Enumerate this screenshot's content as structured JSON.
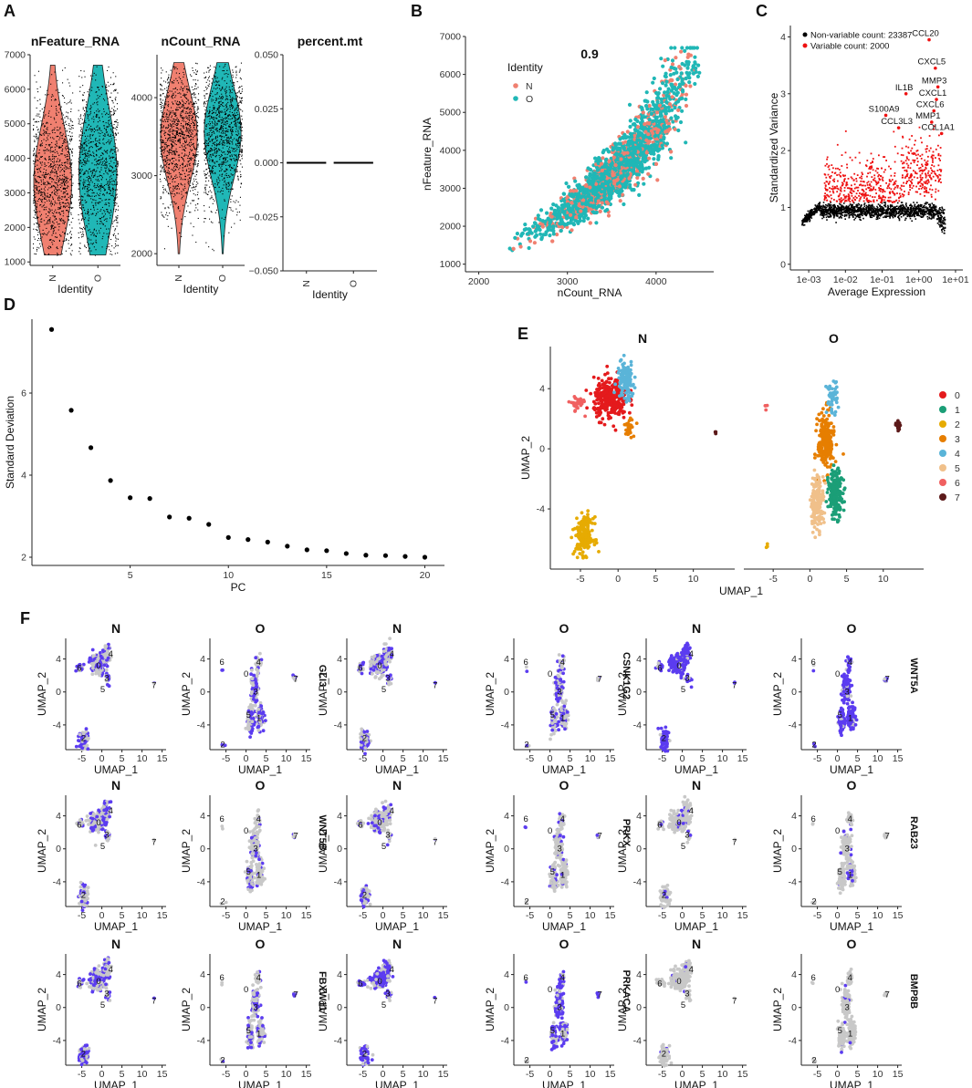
{
  "panel_letters": [
    "A",
    "B",
    "C",
    "D",
    "E",
    "F"
  ],
  "chart_data": [
    {
      "id": "A1",
      "type": "violin",
      "title": "nFeature_RNA",
      "categories": [
        "N",
        "O"
      ],
      "xlabel": "Identity",
      "ylabel": "",
      "ylim": [
        900,
        7000
      ],
      "yticks": [
        1000,
        2000,
        3000,
        4000,
        5000,
        6000,
        7000
      ],
      "series": [
        {
          "name": "N",
          "color": "#F08070",
          "summary": {
            "min": 1200,
            "q1": 2500,
            "median": 3300,
            "q3": 4300,
            "max": 6700
          }
        },
        {
          "name": "O",
          "color": "#20B7B6",
          "summary": {
            "min": 1200,
            "q1": 2700,
            "median": 3600,
            "q3": 4700,
            "max": 6700
          }
        }
      ]
    },
    {
      "id": "A2",
      "type": "violin",
      "title": "nCount_RNA",
      "categories": [
        "N",
        "O"
      ],
      "xlabel": "Identity",
      "ylabel": "",
      "ylim": [
        1850,
        4550
      ],
      "yticks": [
        2000,
        3000,
        4000
      ],
      "series": [
        {
          "name": "N",
          "color": "#F08070",
          "summary": {
            "min": 2000,
            "q1": 3150,
            "median": 3500,
            "q3": 3800,
            "max": 4450
          }
        },
        {
          "name": "O",
          "color": "#20B7B6",
          "summary": {
            "min": 2000,
            "q1": 3200,
            "median": 3550,
            "q3": 3850,
            "max": 4450
          }
        }
      ]
    },
    {
      "id": "A3",
      "type": "violin",
      "title": "percent.mt",
      "categories": [
        "N",
        "O"
      ],
      "xlabel": "Identity",
      "ylabel": "",
      "ylim": [
        -0.05,
        0.05
      ],
      "yticks": [
        -0.05,
        -0.025,
        0.0,
        0.025,
        0.05
      ],
      "ytick_labels": [
        "−0.050",
        "−0.025",
        "0.000",
        "0.025",
        "0.050"
      ],
      "series": [
        {
          "name": "N",
          "value": 0.0
        },
        {
          "name": "O",
          "value": 0.0
        }
      ]
    },
    {
      "id": "B",
      "type": "scatter",
      "title": "0.9",
      "xlabel": "nCount_RNA",
      "ylabel": "nFeature_RNA",
      "xlim": [
        1850,
        4650
      ],
      "ylim": [
        800,
        7000
      ],
      "xticks": [
        2000,
        3000,
        4000
      ],
      "yticks": [
        1000,
        2000,
        3000,
        4000,
        5000,
        6000,
        7000
      ],
      "legend": {
        "title": "Identity",
        "items": [
          {
            "name": "N",
            "color": "#F08070"
          },
          {
            "name": "O",
            "color": "#20B7B6"
          }
        ],
        "position": "top-left"
      },
      "series": [
        {
          "name": "N",
          "color": "#F08070",
          "trend": [
            [
              2000,
              1200
            ],
            [
              2500,
              1700
            ],
            [
              3000,
              2400
            ],
            [
              3500,
              3300
            ],
            [
              4000,
              4600
            ],
            [
              4400,
              6200
            ]
          ]
        },
        {
          "name": "O",
          "color": "#20B7B6",
          "trend": [
            [
              2000,
              1200
            ],
            [
              2500,
              1700
            ],
            [
              3000,
              2400
            ],
            [
              3500,
              3300
            ],
            [
              4000,
              4600
            ],
            [
              4400,
              6200
            ]
          ]
        }
      ]
    },
    {
      "id": "C",
      "type": "scatter",
      "title": "",
      "xlabel": "Average Expression",
      "ylabel": "Standardized Variance",
      "xscale": "log10",
      "xlim": [
        -3.5,
        1.2
      ],
      "ylim": [
        -0.1,
        4.2
      ],
      "xtick_labels": [
        "1e-03",
        "1e-02",
        "1e-01",
        "1e+00",
        "1e+01"
      ],
      "yticks": [
        0,
        1,
        2,
        3,
        4
      ],
      "legend": {
        "items": [
          {
            "name": "Non-variable count: 23387",
            "color": "#000000"
          },
          {
            "name": "Variable count: 2000",
            "color": "#EE1111"
          }
        ],
        "position": "top-left"
      },
      "labeled_points": [
        {
          "label": "CCL20",
          "x": 0.28,
          "y": 3.95
        },
        {
          "label": "CXCL5",
          "x": 0.45,
          "y": 3.45
        },
        {
          "label": "MMP3",
          "x": 0.52,
          "y": 3.12
        },
        {
          "label": "IL1B",
          "x": -0.35,
          "y": 3.0
        },
        {
          "label": "CXCL1",
          "x": 0.48,
          "y": 2.9
        },
        {
          "label": "CXCL6",
          "x": 0.41,
          "y": 2.7
        },
        {
          "label": "S100A9",
          "x": -0.9,
          "y": 2.62
        },
        {
          "label": "MMP1",
          "x": 0.35,
          "y": 2.5
        },
        {
          "label": "CCL3L3",
          "x": -0.55,
          "y": 2.4
        },
        {
          "label": "COL1A1",
          "x": 0.62,
          "y": 2.3
        }
      ]
    },
    {
      "id": "D",
      "type": "scatter",
      "title": "",
      "xlabel": "PC",
      "ylabel": "Standard Deviation",
      "xlim": [
        0,
        21
      ],
      "ylim": [
        1.8,
        7.8
      ],
      "xticks": [
        5,
        10,
        15,
        20
      ],
      "yticks": [
        2,
        4,
        6
      ],
      "x": [
        1,
        2,
        3,
        4,
        5,
        6,
        7,
        8,
        9,
        10,
        11,
        12,
        13,
        14,
        15,
        16,
        17,
        18,
        19,
        20
      ],
      "values": [
        7.55,
        5.58,
        4.67,
        3.87,
        3.45,
        3.43,
        2.98,
        2.95,
        2.8,
        2.48,
        2.43,
        2.37,
        2.27,
        2.18,
        2.16,
        2.09,
        2.05,
        2.04,
        2.02,
        2.0
      ]
    },
    {
      "id": "E",
      "type": "scatter",
      "title": "",
      "xlabel": "UMAP_1",
      "ylabel": "UMAP_2",
      "facets": [
        "N",
        "O"
      ],
      "xlim": [
        -9,
        15.5
      ],
      "ylim": [
        -8,
        6.8
      ],
      "xticks": [
        -5,
        0,
        5,
        10
      ],
      "yticks": [
        -4,
        0,
        4
      ],
      "legend": {
        "title": "",
        "items": [
          {
            "name": "0",
            "color": "#E41A1C"
          },
          {
            "name": "1",
            "color": "#1B9E77"
          },
          {
            "name": "2",
            "color": "#E6AB02"
          },
          {
            "name": "3",
            "color": "#E67E00"
          },
          {
            "name": "4",
            "color": "#5AB4D8"
          },
          {
            "name": "5",
            "color": "#F0C08A"
          },
          {
            "name": "6",
            "color": "#F06060"
          },
          {
            "name": "7",
            "color": "#5C1A1A"
          }
        ],
        "position": "right"
      },
      "clusters_N": [
        {
          "id": "0",
          "cx": -1,
          "cy": 3.3,
          "sx": 2.0,
          "sy": 1.2,
          "n": 300
        },
        {
          "id": "4",
          "cx": 1.0,
          "cy": 4.5,
          "sx": 1.0,
          "sy": 1.2,
          "n": 130
        },
        {
          "id": "3",
          "cx": 1.5,
          "cy": 1.5,
          "sx": 0.6,
          "sy": 0.6,
          "n": 30
        },
        {
          "id": "2",
          "cx": -4.5,
          "cy": -5.8,
          "sx": 1.1,
          "sy": 1.1,
          "n": 180
        },
        {
          "id": "6",
          "cx": -5.5,
          "cy": 3.0,
          "sx": 0.8,
          "sy": 0.5,
          "n": 35
        },
        {
          "id": "7",
          "cx": 13,
          "cy": 1.1,
          "sx": 0.1,
          "sy": 0.1,
          "n": 4
        }
      ],
      "clusters_O": [
        {
          "id": "3",
          "cx": 2.2,
          "cy": 0.5,
          "sx": 1.0,
          "sy": 1.7,
          "n": 220
        },
        {
          "id": "4",
          "cx": 3.0,
          "cy": 3.4,
          "sx": 0.7,
          "sy": 1.0,
          "n": 50
        },
        {
          "id": "1",
          "cx": 3.5,
          "cy": -3.0,
          "sx": 0.9,
          "sy": 1.4,
          "n": 190
        },
        {
          "id": "5",
          "cx": 1.0,
          "cy": -3.5,
          "sx": 0.8,
          "sy": 1.6,
          "n": 170
        },
        {
          "id": "7",
          "cx": 12,
          "cy": 1.6,
          "sx": 0.3,
          "sy": 0.25,
          "n": 20
        },
        {
          "id": "6",
          "cx": -6,
          "cy": 2.8,
          "sx": 0.3,
          "sy": 0.5,
          "n": 4
        },
        {
          "id": "2",
          "cx": -5.8,
          "cy": -6.5,
          "sx": 0.6,
          "sy": 0.2,
          "n": 3
        }
      ]
    },
    {
      "id": "F",
      "type": "scatter",
      "title": "",
      "xlabel": "UMAP_1",
      "ylabel": "UMAP_2",
      "xticks": [
        -5,
        0,
        5,
        10,
        15
      ],
      "yticks": [
        -4,
        0,
        4
      ],
      "facets": [
        "N",
        "O"
      ],
      "cluster_labels_N": [
        {
          "label": "4",
          "x": 2.2,
          "y": 4.6
        },
        {
          "label": "6",
          "x": -5.6,
          "y": 2.9
        },
        {
          "label": "0",
          "x": -0.8,
          "y": 3.2
        },
        {
          "label": "3",
          "x": 1.2,
          "y": 1.7
        },
        {
          "label": "5",
          "x": 0.2,
          "y": 0.3
        },
        {
          "label": "7",
          "x": 13,
          "y": 0.8
        },
        {
          "label": "2",
          "x": -4.6,
          "y": -5.6
        }
      ],
      "cluster_labels_O": [
        {
          "label": "6",
          "x": -6,
          "y": 3.6
        },
        {
          "label": "4",
          "x": 3.1,
          "y": 3.6
        },
        {
          "label": "0",
          "x": 0,
          "y": 2.2
        },
        {
          "label": "7",
          "x": 12.4,
          "y": 1.6
        },
        {
          "label": "3",
          "x": 2.4,
          "y": 0
        },
        {
          "label": "5",
          "x": 0.6,
          "y": -2.8
        },
        {
          "label": "1",
          "x": 3.2,
          "y": -3.2
        },
        {
          "label": "2",
          "x": -5.8,
          "y": -6.4
        }
      ],
      "genes": [
        {
          "name": "GLI3",
          "level_N": 0.55,
          "level_O": 0.45
        },
        {
          "name": "CSNK1G2",
          "level_N": 0.5,
          "level_O": 0.35
        },
        {
          "name": "WNT5A",
          "level_N": 0.9,
          "level_O": 0.85
        },
        {
          "name": "WNT5B",
          "level_N": 0.4,
          "level_O": 0.2
        },
        {
          "name": "PRKX",
          "level_N": 0.3,
          "level_O": 0.15
        },
        {
          "name": "RAB23",
          "level_N": 0.12,
          "level_O": 0.1
        },
        {
          "name": "FBXW11",
          "level_N": 0.55,
          "level_O": 0.35
        },
        {
          "name": "PRKACA",
          "level_N": 0.65,
          "level_O": 0.6
        },
        {
          "name": "BMP8B",
          "level_N": 0.05,
          "level_O": 0.03
        }
      ]
    }
  ]
}
